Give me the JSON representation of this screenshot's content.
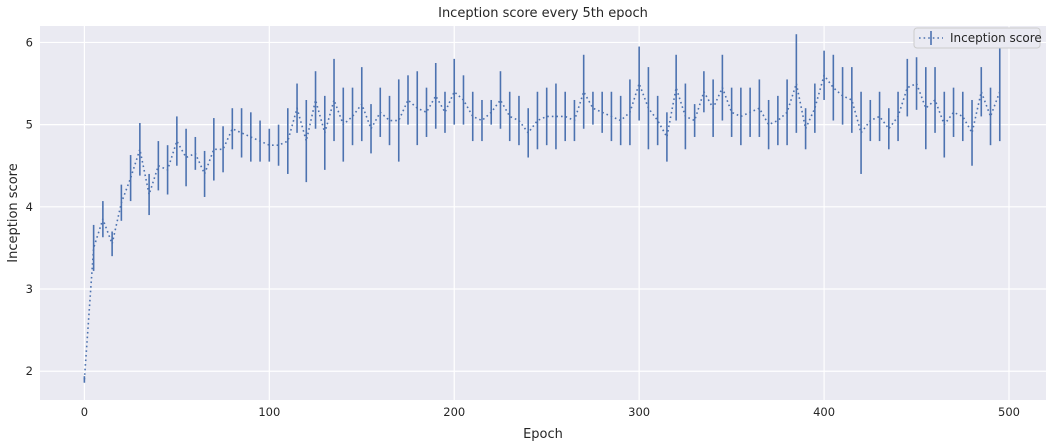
{
  "chart_data": {
    "type": "line",
    "title": "Inception score every 5th epoch",
    "xlabel": "Epoch",
    "ylabel": "Inception score",
    "xlim": [
      -24,
      520
    ],
    "ylim": [
      1.65,
      6.2
    ],
    "xticks": [
      0,
      100,
      200,
      300,
      400,
      500
    ],
    "yticks": [
      2,
      3,
      4,
      5,
      6
    ],
    "grid": true,
    "legend_position": "top-right",
    "series": [
      {
        "name": "Inception score",
        "style": "dotted line with vertical error bars",
        "color": "#4c72b0",
        "x": [
          0,
          5,
          10,
          15,
          20,
          25,
          30,
          35,
          40,
          45,
          50,
          55,
          60,
          65,
          70,
          75,
          80,
          85,
          90,
          95,
          100,
          105,
          110,
          115,
          120,
          125,
          130,
          135,
          140,
          145,
          150,
          155,
          160,
          165,
          170,
          175,
          180,
          185,
          190,
          195,
          200,
          205,
          210,
          215,
          220,
          225,
          230,
          235,
          240,
          245,
          250,
          255,
          260,
          265,
          270,
          275,
          280,
          285,
          290,
          295,
          300,
          305,
          310,
          315,
          320,
          325,
          330,
          335,
          340,
          345,
          350,
          355,
          360,
          365,
          370,
          375,
          380,
          385,
          390,
          395,
          400,
          405,
          410,
          415,
          420,
          425,
          430,
          435,
          440,
          445,
          450,
          455,
          460,
          465,
          470,
          475,
          480,
          485,
          490,
          495
        ],
        "y": [
          1.9,
          3.5,
          3.85,
          3.55,
          4.05,
          4.35,
          4.7,
          4.15,
          4.5,
          4.45,
          4.8,
          4.6,
          4.65,
          4.4,
          4.7,
          4.7,
          4.95,
          4.9,
          4.85,
          4.8,
          4.75,
          4.75,
          4.8,
          5.2,
          4.8,
          5.3,
          4.9,
          5.3,
          5.0,
          5.1,
          5.25,
          4.95,
          5.15,
          5.05,
          5.05,
          5.3,
          5.2,
          5.15,
          5.35,
          5.15,
          5.4,
          5.3,
          5.1,
          5.05,
          5.15,
          5.3,
          5.1,
          5.05,
          4.9,
          5.05,
          5.1,
          5.1,
          5.1,
          5.05,
          5.4,
          5.2,
          5.15,
          5.1,
          5.05,
          5.15,
          5.5,
          5.2,
          5.05,
          4.85,
          5.45,
          5.1,
          5.05,
          5.4,
          5.2,
          5.45,
          5.15,
          5.1,
          5.15,
          5.2,
          5.0,
          5.05,
          5.15,
          5.5,
          4.95,
          5.2,
          5.6,
          5.45,
          5.35,
          5.3,
          4.9,
          5.05,
          5.1,
          4.95,
          5.1,
          5.45,
          5.5,
          5.2,
          5.3,
          5.0,
          5.15,
          5.1,
          4.9,
          5.4,
          5.1,
          5.4
        ],
        "yerr": [
          0.04,
          0.28,
          0.22,
          0.15,
          0.22,
          0.28,
          0.32,
          0.25,
          0.3,
          0.3,
          0.3,
          0.35,
          0.2,
          0.28,
          0.38,
          0.28,
          0.25,
          0.3,
          0.3,
          0.25,
          0.2,
          0.25,
          0.4,
          0.3,
          0.5,
          0.35,
          0.45,
          0.5,
          0.45,
          0.35,
          0.45,
          0.3,
          0.3,
          0.3,
          0.5,
          0.3,
          0.45,
          0.3,
          0.4,
          0.25,
          0.4,
          0.3,
          0.3,
          0.25,
          0.15,
          0.35,
          0.3,
          0.3,
          0.3,
          0.35,
          0.35,
          0.4,
          0.3,
          0.25,
          0.45,
          0.2,
          0.25,
          0.3,
          0.3,
          0.4,
          0.45,
          0.5,
          0.3,
          0.3,
          0.4,
          0.4,
          0.2,
          0.25,
          0.35,
          0.4,
          0.3,
          0.35,
          0.3,
          0.35,
          0.3,
          0.3,
          0.4,
          0.6,
          0.25,
          0.3,
          0.3,
          0.4,
          0.35,
          0.4,
          0.5,
          0.25,
          0.3,
          0.25,
          0.3,
          0.35,
          0.32,
          0.5,
          0.4,
          0.4,
          0.3,
          0.3,
          0.4,
          0.3,
          0.35,
          0.6
        ]
      }
    ]
  }
}
